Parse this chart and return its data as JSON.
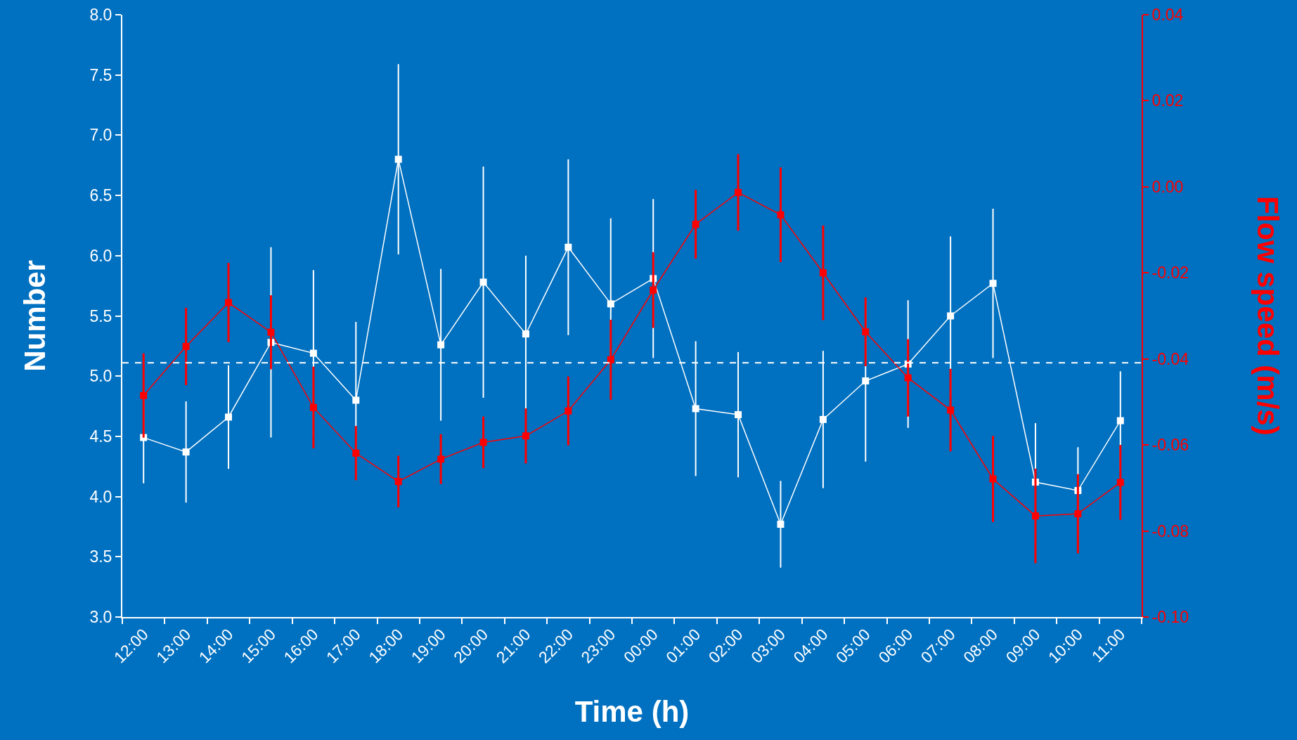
{
  "chart_data": {
    "type": "line",
    "xlabel": "Time (h)",
    "ylabel": "Number",
    "y2label": "Flow speed (m/s)",
    "categories": [
      "12:00",
      "13:00",
      "14:00",
      "15:00",
      "16:00",
      "17:00",
      "18:00",
      "19:00",
      "20:00",
      "21:00",
      "22:00",
      "23:00",
      "00:00",
      "01:00",
      "02:00",
      "03:00",
      "04:00",
      "05:00",
      "06:00",
      "07:00",
      "08:00",
      "09:00",
      "10:00",
      "11:00"
    ],
    "series": [
      {
        "color": "#ffffff",
        "values": [
          4.49,
          4.37,
          4.66,
          5.28,
          5.19,
          4.8,
          6.8,
          5.26,
          5.78,
          5.35,
          6.07,
          5.6,
          5.81,
          4.73,
          4.68,
          3.77,
          4.64,
          4.96,
          5.1,
          5.5,
          5.77,
          4.12,
          4.05,
          4.63
        ],
        "errors": [
          0.38,
          0.42,
          0.43,
          0.79,
          0.69,
          0.65,
          0.79,
          0.63,
          0.96,
          0.65,
          0.73,
          0.71,
          0.66,
          0.56,
          0.52,
          0.36,
          0.57,
          0.67,
          0.53,
          0.66,
          0.62,
          0.49,
          0.36,
          0.41
        ]
      },
      {
        "color": "#ff0000",
        "axis": "y2",
        "values": [
          -0.0485,
          -0.0371,
          -0.0269,
          -0.0338,
          -0.0513,
          -0.0619,
          -0.0685,
          -0.0633,
          -0.0594,
          -0.0579,
          -0.0521,
          -0.0402,
          -0.024,
          -0.0087,
          -0.0013,
          -0.0065,
          -0.02,
          -0.0337,
          -0.0444,
          -0.0519,
          -0.0679,
          -0.0765,
          -0.076,
          -0.0687
        ],
        "errors": [
          0.0098,
          0.009,
          0.0092,
          0.0086,
          0.0095,
          0.0063,
          0.006,
          0.0058,
          0.006,
          0.0064,
          0.008,
          0.0093,
          0.0088,
          0.008,
          0.0089,
          0.011,
          0.011,
          0.008,
          0.009,
          0.0096,
          0.01,
          0.011,
          0.0092,
          0.0087
        ]
      }
    ],
    "ylim": [
      3,
      8
    ],
    "yticks": [
      {
        "value": 3,
        "label": "3.0"
      },
      3.5,
      {
        "value": 4,
        "label": "4.0"
      },
      4.5,
      {
        "value": 5,
        "label": "5.0"
      },
      5.5,
      {
        "value": 6,
        "label": "6.0"
      },
      6.5,
      {
        "value": 7,
        "label": "7.0"
      },
      7.5,
      {
        "value": 8,
        "label": "8.0"
      }
    ],
    "y2lim": [
      -0.1,
      0.04
    ],
    "y2ticks": [
      {
        "value": -0.1,
        "label": "-0.10"
      },
      -0.08,
      -0.06,
      -0.04,
      -0.02,
      {
        "value": 0,
        "label": "0.00"
      },
      0.02,
      0.04
    ],
    "ref_lines": [
      {
        "axis": "y",
        "value": 5.11,
        "color": "#ffffff",
        "line_style": "dashed"
      }
    ],
    "marker": "square",
    "line_style": "solid",
    "grid": false
  }
}
